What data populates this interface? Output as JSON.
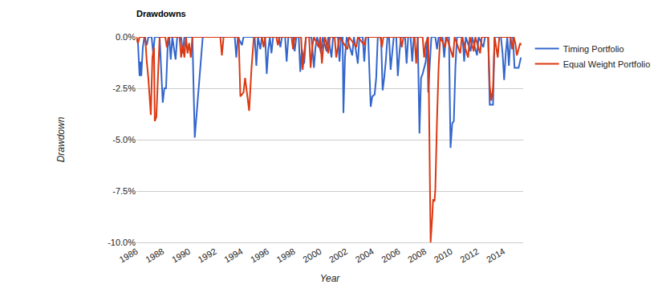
{
  "chart_data": {
    "type": "line",
    "title": "Drawdowns",
    "x_label": "Year",
    "y_label": "Drawdown",
    "xlim": [
      1986,
      2015.5
    ],
    "xticks": [
      1986,
      1988,
      1990,
      1992,
      1994,
      1996,
      1998,
      2000,
      2002,
      2004,
      2006,
      2008,
      2010,
      2012,
      2014
    ],
    "ylim": [
      -10,
      0
    ],
    "yticks": [
      {
        "value": -10,
        "label": "-10.0%"
      },
      {
        "value": -7.5,
        "label": "-7.5%"
      },
      {
        "value": -5,
        "label": "-5.0%"
      },
      {
        "value": -2.5,
        "label": "-2.5%"
      },
      {
        "value": 0,
        "label": "0.0%"
      }
    ],
    "grid": true,
    "legend": "right",
    "series": [
      {
        "name": "Timing Portfolio",
        "color": "#3366cc",
        "x": [
          1986.0,
          1986.12,
          1986.24,
          1986.3,
          1986.37,
          1986.49,
          1986.61,
          1986.79,
          1986.91,
          1987.16,
          1987.28,
          1987.4,
          1987.77,
          1988.01,
          1988.13,
          1988.26,
          1988.38,
          1988.5,
          1988.62,
          1988.74,
          1988.99,
          1989.11,
          1989.41,
          1989.54,
          1989.66,
          1990.27,
          1990.45,
          1990.63,
          1990.82,
          1990.94,
          1991.06,
          1993.5,
          1993.62,
          1993.74,
          1994.05,
          1994.17,
          1995.02,
          1995.15,
          1995.27,
          1995.45,
          1995.57,
          1995.82,
          1995.94,
          1996.06,
          1996.18,
          1996.3,
          1996.43,
          1996.85,
          1996.98,
          1997.1,
          1997.34,
          1997.46,
          1997.59,
          1997.95,
          1998.07,
          1998.2,
          1998.38,
          1998.5,
          1998.62,
          1998.8,
          1998.93,
          1999.35,
          1999.54,
          1999.66,
          1999.78,
          2000.09,
          2000.21,
          2000.51,
          2000.63,
          2000.88,
          2001.0,
          2001.37,
          2001.49,
          2001.61,
          2001.73,
          2001.79,
          2001.91,
          2002.04,
          2002.46,
          2002.59,
          2002.89,
          2003.01,
          2003.26,
          2003.38,
          2003.5,
          2003.68,
          2003.87,
          2003.99,
          2004.17,
          2004.29,
          2004.41,
          2004.66,
          2004.78,
          2004.9,
          2005.02,
          2005.15,
          2005.27,
          2005.39,
          2005.51,
          2005.63,
          2005.82,
          2005.94,
          2006.06,
          2006.18,
          2006.49,
          2006.61,
          2006.73,
          2006.91,
          2007.04,
          2007.16,
          2007.46,
          2007.59,
          2007.71,
          2007.83,
          2007.95,
          2008.07,
          2008.2,
          2008.26,
          2008.38,
          2008.5,
          2008.8,
          2008.93,
          2009.05,
          2009.35,
          2009.48,
          2009.6,
          2009.84,
          2009.96,
          2010.09,
          2010.21,
          2010.33,
          2010.45,
          2010.88,
          2011.0,
          2011.12,
          2011.49,
          2011.61,
          2011.98,
          2012.1,
          2012.46,
          2012.59,
          2012.83,
          2012.95,
          2013.2,
          2013.32,
          2013.8,
          2013.93,
          2014.05,
          2014.17,
          2014.29,
          2014.41,
          2014.54,
          2014.72,
          2014.84,
          2015.15,
          2015.33
        ],
        "values": [
          0,
          -0.3,
          -1.9,
          -1.2,
          -1.9,
          -0.5,
          0,
          -0.4,
          0,
          0,
          -0.8,
          0,
          0,
          -3.2,
          -2.5,
          -2.5,
          -0.5,
          0,
          -1.1,
          0,
          -1.1,
          0,
          0,
          -0.8,
          0,
          0,
          -4.9,
          -3.5,
          -2.0,
          -1.0,
          0,
          0,
          -1.0,
          0,
          -0.4,
          0,
          0,
          -1.4,
          0,
          -0.6,
          0,
          0,
          -1.8,
          -0.6,
          0,
          -0.8,
          0,
          0,
          -0.5,
          0,
          0,
          -1.2,
          0,
          0,
          -0.7,
          0,
          0,
          -1.7,
          -0.6,
          -1.3,
          0,
          0,
          -1.5,
          -0.5,
          0,
          -0.8,
          0,
          -0.7,
          0,
          -1.0,
          0,
          0,
          -1.2,
          0,
          0,
          -3.7,
          -1.0,
          0,
          -0.9,
          0,
          -1.3,
          0,
          0,
          -1.2,
          0,
          0,
          -3.4,
          -2.9,
          -2.8,
          -2.0,
          0,
          0,
          -2.6,
          -2.0,
          -1.2,
          0,
          0,
          -1.6,
          -0.8,
          0,
          0,
          -1.9,
          -0.8,
          0,
          0,
          -1.3,
          0,
          0,
          -1.2,
          0,
          0,
          -4.7,
          -2.0,
          -1.8,
          -1.5,
          -1.2,
          0,
          -2.7,
          -1.3,
          0,
          0,
          -0.6,
          0,
          0,
          -1.0,
          0,
          0,
          -5.4,
          -4.2,
          -4.1,
          -1.5,
          0,
          0,
          -1.2,
          0,
          -0.7,
          0,
          -0.9,
          0,
          -0.5,
          0,
          0,
          -3.3,
          -3.3,
          0,
          0,
          -0.8,
          -2.1,
          -0.8,
          0,
          -1.4,
          0,
          0,
          -1.5,
          -1.5,
          -1.0
        ]
      },
      {
        "name": "Equal Weight Portfolio",
        "color": "#dc3912",
        "x": [
          1986.0,
          1986.12,
          1986.24,
          1986.67,
          1986.79,
          1986.91,
          1987.1,
          1987.22,
          1987.34,
          1987.4,
          1987.52,
          1987.65,
          1987.77,
          1988.2,
          1988.32,
          1988.44,
          1989.29,
          1989.41,
          1989.54,
          1989.66,
          1989.78,
          1989.9,
          1990.02,
          1990.15,
          1990.27,
          1992.4,
          1992.52,
          1992.65,
          1993.8,
          1993.93,
          1994.05,
          1994.17,
          1994.29,
          1994.48,
          1994.6,
          1994.78,
          1994.96,
          1995.57,
          1995.7,
          1995.82,
          1996.67,
          1996.79,
          1996.91,
          1997.83,
          1997.95,
          1998.07,
          1998.56,
          1998.68,
          1998.8,
          1998.93,
          1999.17,
          1999.29,
          1999.41,
          1999.54,
          1999.9,
          2000.02,
          2000.15,
          2000.27,
          2000.39,
          2000.63,
          2000.76,
          2001.12,
          2001.24,
          2001.37,
          2001.49,
          2002.1,
          2002.22,
          2002.77,
          2002.89,
          2003.38,
          2003.5,
          2004.6,
          2004.72,
          2004.84,
          2006.12,
          2006.24,
          2006.37,
          2007.22,
          2007.34,
          2007.46,
          2007.83,
          2007.95,
          2008.07,
          2008.26,
          2008.32,
          2008.44,
          2008.56,
          2008.63,
          2008.74,
          2008.8,
          2008.93,
          2009.05,
          2009.17,
          2009.54,
          2009.66,
          2010.15,
          2010.27,
          2010.7,
          2010.82,
          2011.3,
          2011.43,
          2011.73,
          2011.85,
          2012.22,
          2012.34,
          2012.83,
          2012.95,
          2013.07,
          2013.2,
          2013.32,
          2013.56,
          2013.68,
          2014.54,
          2014.66,
          2014.78,
          2014.9,
          2015.02,
          2015.15,
          2015.27,
          2015.33
        ],
        "values": [
          0,
          -0.3,
          0,
          0,
          -1.2,
          -2.0,
          -3.8,
          -1.0,
          -0.5,
          -4.1,
          -3.9,
          -1.5,
          0,
          0,
          -0.5,
          0,
          0,
          -1.0,
          -0.4,
          -1.0,
          0,
          -0.8,
          -0.3,
          -1.0,
          0,
          0,
          -0.9,
          0,
          0,
          -2.9,
          -2.8,
          -2.7,
          -2.0,
          -3.0,
          -3.6,
          -1.5,
          0,
          0,
          -0.5,
          0,
          0,
          -0.4,
          0,
          0,
          -0.6,
          0,
          0,
          -1.6,
          -0.8,
          0,
          0,
          -1.5,
          -0.5,
          0,
          -0.5,
          0,
          -1.3,
          -0.4,
          0,
          -0.8,
          0,
          0,
          -1.0,
          -0.4,
          0,
          -0.6,
          0,
          -0.5,
          0,
          -0.4,
          0,
          0,
          -0.5,
          0,
          0,
          -0.5,
          0,
          0,
          -1.3,
          0,
          0,
          -1.0,
          -0.3,
          0,
          -3.0,
          -10.0,
          -8.8,
          -7.9,
          -8.0,
          -7.4,
          -4.0,
          -1.5,
          0,
          -0.5,
          0,
          -1.0,
          0,
          -0.8,
          0,
          -1.0,
          0,
          -0.7,
          0,
          -0.8,
          0,
          0,
          -2.4,
          -3.1,
          -2.5,
          0,
          -1.0,
          0,
          0,
          -0.6,
          0,
          -0.3,
          -0.9,
          -0.6,
          -0.3,
          -0.4
        ]
      }
    ]
  }
}
